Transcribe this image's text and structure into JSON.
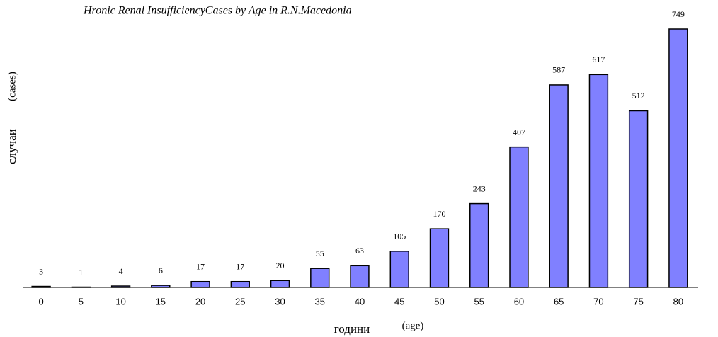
{
  "chart_data": {
    "type": "bar",
    "title": "Hronic Renal InsufficiencyCases by Age in R.N.Macedonia",
    "x_label": "години",
    "x_label_note": "(age)",
    "y_label": "случаи",
    "y_label_note": "(cases)",
    "categories": [
      "0",
      "5",
      "10",
      "15",
      "20",
      "25",
      "30",
      "35",
      "40",
      "45",
      "50",
      "55",
      "60",
      "65",
      "70",
      "75",
      "80"
    ],
    "values": [
      3,
      1,
      4,
      6,
      17,
      17,
      20,
      55,
      63,
      105,
      170,
      243,
      407,
      587,
      617,
      512,
      749
    ],
    "color": "#8080ff"
  }
}
